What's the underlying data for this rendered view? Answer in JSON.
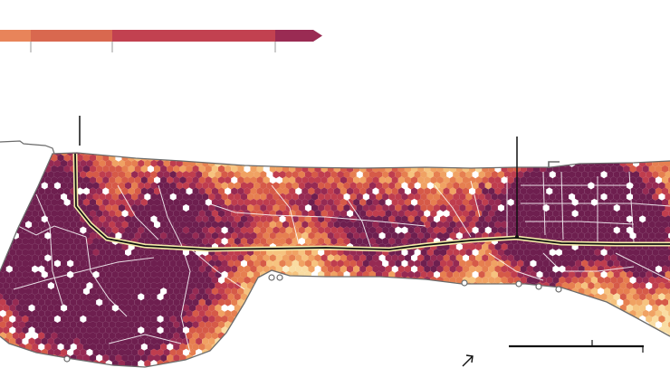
{
  "legend": {
    "steps": [
      {
        "color": "#e8845a"
      },
      {
        "color": "#d9684f"
      },
      {
        "color": "#c24150"
      },
      {
        "color": "#9a2b53"
      }
    ]
  },
  "palette": [
    "#fbeec8",
    "#f9dca2",
    "#f6c37f",
    "#f0a263",
    "#e67f50",
    "#d65a48",
    "#bf3d4e",
    "#962a53",
    "#6e1f4f"
  ],
  "colors": {
    "coast": "#6b6b6b",
    "road_main_outer": "#f3e9a8",
    "road_main_inner": "#111111",
    "road_minor": "#ffffff",
    "water": "#ffffff"
  },
  "map": {
    "has_north_arrow": true,
    "has_scale_bar": true,
    "callouts": 2,
    "markers": 7
  }
}
